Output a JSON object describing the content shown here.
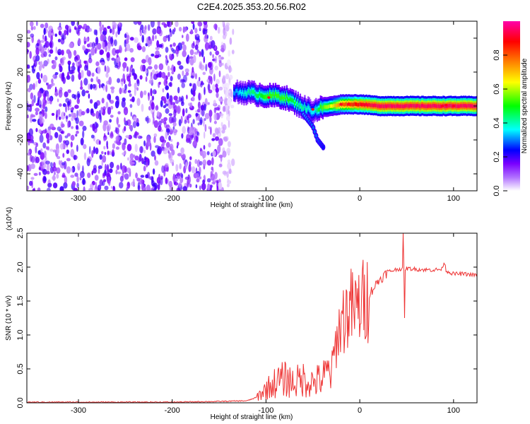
{
  "chart_data": [
    {
      "type": "heatmap",
      "title": "C2E4.2025.353.20.56.R02",
      "xlabel": "Height of straight line (km)",
      "ylabel": "Frequency (Hz)",
      "xlim": [
        -355,
        125
      ],
      "ylim": [
        -50,
        50
      ],
      "xticks": [
        -300,
        -200,
        -100,
        0,
        100
      ],
      "yticks": [
        -40,
        -20,
        0,
        20,
        40
      ],
      "colorbar": {
        "label": "Normalized spectral amplitude",
        "range": [
          0,
          1
        ],
        "ticks": [
          "0.0",
          "0.2",
          "0.4",
          "0.6",
          "0.8"
        ],
        "colormap": [
          "#ffffff",
          "#7a00ff",
          "#0000ff",
          "#00ffff",
          "#00ff00",
          "#ffff00",
          "#ff8000",
          "#ff0000",
          "#ff00aa"
        ]
      },
      "noise_region": {
        "x_range": [
          -355,
          -135
        ],
        "freq_range": [
          -50,
          50
        ],
        "typical_amplitude": 0.1
      },
      "signal_band": [
        {
          "x": -135,
          "f": 8,
          "a": 0.3
        },
        {
          "x": -120,
          "f": 8,
          "a": 0.4
        },
        {
          "x": -110,
          "f": 7,
          "a": 0.45
        },
        {
          "x": -100,
          "f": 6,
          "a": 0.5
        },
        {
          "x": -90,
          "f": 6,
          "a": 0.5
        },
        {
          "x": -80,
          "f": 5,
          "a": 0.5
        },
        {
          "x": -70,
          "f": 2,
          "a": 0.45
        },
        {
          "x": -60,
          "f": -1,
          "a": 0.4
        },
        {
          "x": -50,
          "f": -3,
          "a": 0.35
        },
        {
          "x": -42,
          "f": -1,
          "a": 0.5
        },
        {
          "x": -30,
          "f": 0,
          "a": 0.6
        },
        {
          "x": -20,
          "f": 1,
          "a": 0.75
        },
        {
          "x": -10,
          "f": 1,
          "a": 0.8
        },
        {
          "x": 0,
          "f": 1,
          "a": 0.85
        },
        {
          "x": 20,
          "f": 0,
          "a": 0.9
        },
        {
          "x": 50,
          "f": 0,
          "a": 0.9
        },
        {
          "x": 80,
          "f": 0,
          "a": 0.9
        },
        {
          "x": 100,
          "f": 0,
          "a": 0.9
        },
        {
          "x": 125,
          "f": 0,
          "a": 0.9
        }
      ],
      "signal_branch": [
        {
          "x": -60,
          "f": -5,
          "a": 0.35
        },
        {
          "x": -50,
          "f": -12,
          "a": 0.3
        },
        {
          "x": -45,
          "f": -20,
          "a": 0.3
        },
        {
          "x": -38,
          "f": -25,
          "a": 0.25
        }
      ]
    },
    {
      "type": "line",
      "xlabel": "Height of straight line (km)",
      "ylabel": "SNR (10 * v/v)",
      "y_multiplier": "(x10^4)",
      "xlim": [
        -355,
        125
      ],
      "ylim": [
        0,
        2.5
      ],
      "xticks": [
        -300,
        -200,
        -100,
        0,
        100
      ],
      "yticks": [
        "0.0",
        "0.5",
        "1.0",
        "1.5",
        "2.0",
        "2.5"
      ],
      "color": "#ee3333",
      "series": [
        {
          "x": [
            -355,
            -300,
            -250,
            -200,
            -150,
            -120,
            -110,
            -100,
            -90,
            -80,
            -70,
            -60,
            -50,
            -40,
            -30,
            -25,
            -20,
            -15,
            -10,
            -5,
            0,
            5,
            10,
            20,
            30,
            40,
            50,
            60,
            70,
            80,
            88,
            90,
            92,
            95,
            100,
            110,
            125
          ],
          "y": [
            0.01,
            0.01,
            0.01,
            0.01,
            0.02,
            0.03,
            0.08,
            0.2,
            0.3,
            0.35,
            0.3,
            0.35,
            0.3,
            0.35,
            0.5,
            0.9,
            1.2,
            1.3,
            1.4,
            1.35,
            1.45,
            1.5,
            1.6,
            1.8,
            1.93,
            1.97,
            1.98,
            1.97,
            1.96,
            1.96,
            1.97,
            2.1,
            1.95,
            1.93,
            1.9,
            1.9,
            1.88
          ]
        }
      ]
    }
  ]
}
